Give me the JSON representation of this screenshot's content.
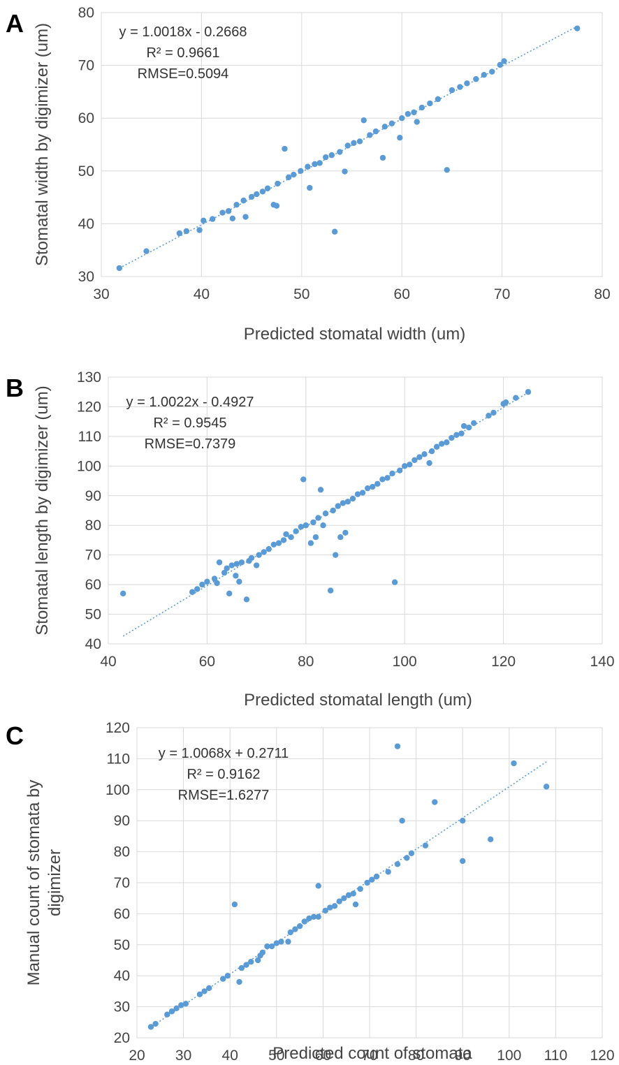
{
  "colors": {
    "points": "#5b9bd5",
    "trend": "#5b9bd5"
  },
  "chart_data": [
    {
      "type": "scatter",
      "panel": "A",
      "title": "",
      "xlabel": "Predicted stomatal width (um)",
      "ylabel": "Stomatal width by digimizer (um)",
      "xlim": [
        30,
        80
      ],
      "ylim": [
        30,
        80
      ],
      "xticks": [
        30,
        40,
        50,
        60,
        70,
        80
      ],
      "yticks": [
        30,
        40,
        50,
        60,
        70,
        80
      ],
      "equation": "y = 1.0018x - 0.2668",
      "r2": "R² = 0.9661",
      "rmse": "RMSE=0.5094",
      "trendline": {
        "slope": 1.0018,
        "intercept": -0.2668,
        "x_range": [
          31.8,
          77.5
        ]
      },
      "points": [
        [
          31.8,
          31.6
        ],
        [
          34.5,
          34.8
        ],
        [
          37.8,
          38.2
        ],
        [
          38.5,
          38.6
        ],
        [
          39.8,
          38.8
        ],
        [
          40.2,
          40.6
        ],
        [
          41.1,
          40.9
        ],
        [
          42.1,
          42.1
        ],
        [
          42.7,
          42.4
        ],
        [
          43.1,
          41
        ],
        [
          43.5,
          43.6
        ],
        [
          44.2,
          44.4
        ],
        [
          44.4,
          41.3
        ],
        [
          45,
          45.1
        ],
        [
          45.5,
          45.6
        ],
        [
          46.1,
          46.1
        ],
        [
          46.6,
          46.7
        ],
        [
          47.2,
          43.6
        ],
        [
          47.5,
          43.4
        ],
        [
          47.6,
          47.6
        ],
        [
          48.3,
          54.2
        ],
        [
          48.7,
          48.8
        ],
        [
          49.2,
          49.3
        ],
        [
          49.9,
          50
        ],
        [
          50.6,
          50.8
        ],
        [
          50.8,
          46.8
        ],
        [
          51.3,
          51.3
        ],
        [
          51.8,
          51.5
        ],
        [
          52.4,
          52.6
        ],
        [
          53,
          53
        ],
        [
          53.3,
          38.5
        ],
        [
          53.8,
          53.6
        ],
        [
          54.3,
          49.9
        ],
        [
          54.6,
          54.8
        ],
        [
          55.2,
          55.3
        ],
        [
          55.8,
          55.6
        ],
        [
          56.2,
          59.6
        ],
        [
          56.8,
          56.8
        ],
        [
          57.4,
          57.5
        ],
        [
          58.1,
          52.5
        ],
        [
          58.3,
          58.4
        ],
        [
          59,
          59
        ],
        [
          59.8,
          56.3
        ],
        [
          60,
          60
        ],
        [
          60.6,
          60.8
        ],
        [
          61.2,
          61.1
        ],
        [
          61.5,
          59.3
        ],
        [
          62,
          62
        ],
        [
          62.8,
          62.8
        ],
        [
          63.6,
          63.6
        ],
        [
          64.5,
          50.2
        ],
        [
          65,
          65.3
        ],
        [
          65.8,
          65.9
        ],
        [
          66.5,
          66.6
        ],
        [
          67.4,
          67.4
        ],
        [
          68.2,
          68.2
        ],
        [
          69,
          68.8
        ],
        [
          69.8,
          70.1
        ],
        [
          70.2,
          70.8
        ],
        [
          77.5,
          77
        ]
      ]
    },
    {
      "type": "scatter",
      "panel": "B",
      "title": "",
      "xlabel": "Predicted stomatal length (um)",
      "ylabel": "Stomatal length by digimizer (um)",
      "xlim": [
        40,
        140
      ],
      "ylim": [
        40,
        130
      ],
      "xticks": [
        40,
        60,
        80,
        100,
        120,
        140
      ],
      "yticks": [
        40,
        50,
        60,
        70,
        80,
        90,
        100,
        110,
        120,
        130
      ],
      "equation": "y = 1.0022x - 0.4927",
      "r2": "R² = 0.9545",
      "rmse": "RMSE=0.7379",
      "trendline": {
        "slope": 1.0022,
        "intercept": -0.4927,
        "x_range": [
          43,
          125
        ]
      },
      "points": [
        [
          43,
          57
        ],
        [
          57,
          57.5
        ],
        [
          58,
          58.5
        ],
        [
          59,
          60
        ],
        [
          60,
          61
        ],
        [
          61.5,
          62
        ],
        [
          62,
          60.5
        ],
        [
          62.5,
          67.5
        ],
        [
          63.5,
          64
        ],
        [
          64,
          65.5
        ],
        [
          64.5,
          57
        ],
        [
          65,
          66.5
        ],
        [
          65.8,
          63
        ],
        [
          66,
          67
        ],
        [
          66.5,
          61
        ],
        [
          67,
          67.5
        ],
        [
          68,
          55
        ],
        [
          68.5,
          68
        ],
        [
          69,
          69
        ],
        [
          70,
          66.5
        ],
        [
          70.5,
          70
        ],
        [
          71.5,
          71
        ],
        [
          72.5,
          72
        ],
        [
          73.5,
          73.5
        ],
        [
          74.5,
          74
        ],
        [
          75.5,
          75
        ],
        [
          76,
          77
        ],
        [
          77,
          76
        ],
        [
          78,
          78
        ],
        [
          79,
          79.5
        ],
        [
          79.5,
          95.5
        ],
        [
          80,
          80
        ],
        [
          81,
          74
        ],
        [
          81.5,
          81
        ],
        [
          82,
          76
        ],
        [
          82.5,
          82.5
        ],
        [
          83,
          92
        ],
        [
          83.5,
          80
        ],
        [
          84,
          84
        ],
        [
          85,
          58
        ],
        [
          85.5,
          85
        ],
        [
          86,
          70
        ],
        [
          86.5,
          86.5
        ],
        [
          87,
          76
        ],
        [
          87.5,
          87.5
        ],
        [
          88,
          77.5
        ],
        [
          88.5,
          88
        ],
        [
          89.5,
          89
        ],
        [
          90.5,
          90.5
        ],
        [
          91.5,
          91
        ],
        [
          92.5,
          92.5
        ],
        [
          93.5,
          93
        ],
        [
          94.5,
          94
        ],
        [
          95.5,
          95.5
        ],
        [
          96.5,
          96
        ],
        [
          97.5,
          97.5
        ],
        [
          98,
          60.8
        ],
        [
          99,
          98.5
        ],
        [
          100,
          100
        ],
        [
          101,
          100.5
        ],
        [
          102,
          102
        ],
        [
          103,
          103
        ],
        [
          104,
          104
        ],
        [
          105,
          101
        ],
        [
          105.5,
          105
        ],
        [
          106.5,
          106.5
        ],
        [
          107.5,
          107.5
        ],
        [
          108.5,
          108
        ],
        [
          109.5,
          109.5
        ],
        [
          110.5,
          110.5
        ],
        [
          111.5,
          111
        ],
        [
          112,
          113.5
        ],
        [
          113,
          113
        ],
        [
          114,
          114.5
        ],
        [
          117,
          117
        ],
        [
          118,
          118
        ],
        [
          120,
          121
        ],
        [
          120.5,
          121.5
        ],
        [
          122.5,
          123
        ],
        [
          125,
          125
        ]
      ]
    },
    {
      "type": "scatter",
      "panel": "C",
      "title": "",
      "xlabel": "Predicted count of stomata",
      "ylabel": "Manual count of stomata by digimizer",
      "xlim": [
        20,
        120
      ],
      "ylim": [
        20,
        120
      ],
      "xticks": [
        20,
        30,
        40,
        50,
        60,
        70,
        80,
        90,
        100,
        110,
        120
      ],
      "yticks": [
        20,
        30,
        40,
        50,
        60,
        70,
        80,
        90,
        100,
        110,
        120
      ],
      "equation": "y = 1.0068x + 0.2711",
      "r2": "R² = 0.9162",
      "rmse": "RMSE=1.6277",
      "trendline": {
        "slope": 1.0068,
        "intercept": 0.2711,
        "x_range": [
          23,
          108
        ]
      },
      "points": [
        [
          23,
          23.5
        ],
        [
          24,
          24.5
        ],
        [
          26.5,
          27.5
        ],
        [
          27.5,
          28.5
        ],
        [
          28.5,
          29.5
        ],
        [
          29.5,
          30.5
        ],
        [
          30.5,
          31
        ],
        [
          33.5,
          34
        ],
        [
          34.5,
          35
        ],
        [
          35.5,
          36
        ],
        [
          38.5,
          39
        ],
        [
          39.5,
          40
        ],
        [
          41,
          63
        ],
        [
          42,
          38
        ],
        [
          42.5,
          42.5
        ],
        [
          43.5,
          43.5
        ],
        [
          44.5,
          44.5
        ],
        [
          46,
          45
        ],
        [
          46.5,
          46.5
        ],
        [
          47,
          47.5
        ],
        [
          48,
          49.5
        ],
        [
          49,
          49.5
        ],
        [
          50,
          50.5
        ],
        [
          51,
          51
        ],
        [
          52.5,
          51
        ],
        [
          53,
          54
        ],
        [
          54,
          55
        ],
        [
          55,
          56
        ],
        [
          56,
          57.5
        ],
        [
          57,
          58.5
        ],
        [
          58,
          59
        ],
        [
          59,
          59
        ],
        [
          59,
          69
        ],
        [
          60.5,
          61
        ],
        [
          61.5,
          62
        ],
        [
          62.5,
          62.5
        ],
        [
          63.5,
          64
        ],
        [
          64.5,
          65
        ],
        [
          65.5,
          66
        ],
        [
          66.5,
          66.5
        ],
        [
          67,
          63
        ],
        [
          68,
          68
        ],
        [
          69.5,
          70
        ],
        [
          70.5,
          71
        ],
        [
          71.5,
          72
        ],
        [
          74,
          73.5
        ],
        [
          76,
          76
        ],
        [
          76,
          114
        ],
        [
          77,
          90
        ],
        [
          78,
          78
        ],
        [
          79,
          79.5
        ],
        [
          82,
          82
        ],
        [
          84,
          96
        ],
        [
          90,
          90
        ],
        [
          90,
          77
        ],
        [
          96,
          84
        ],
        [
          101,
          108.5
        ],
        [
          108,
          101
        ]
      ]
    }
  ]
}
